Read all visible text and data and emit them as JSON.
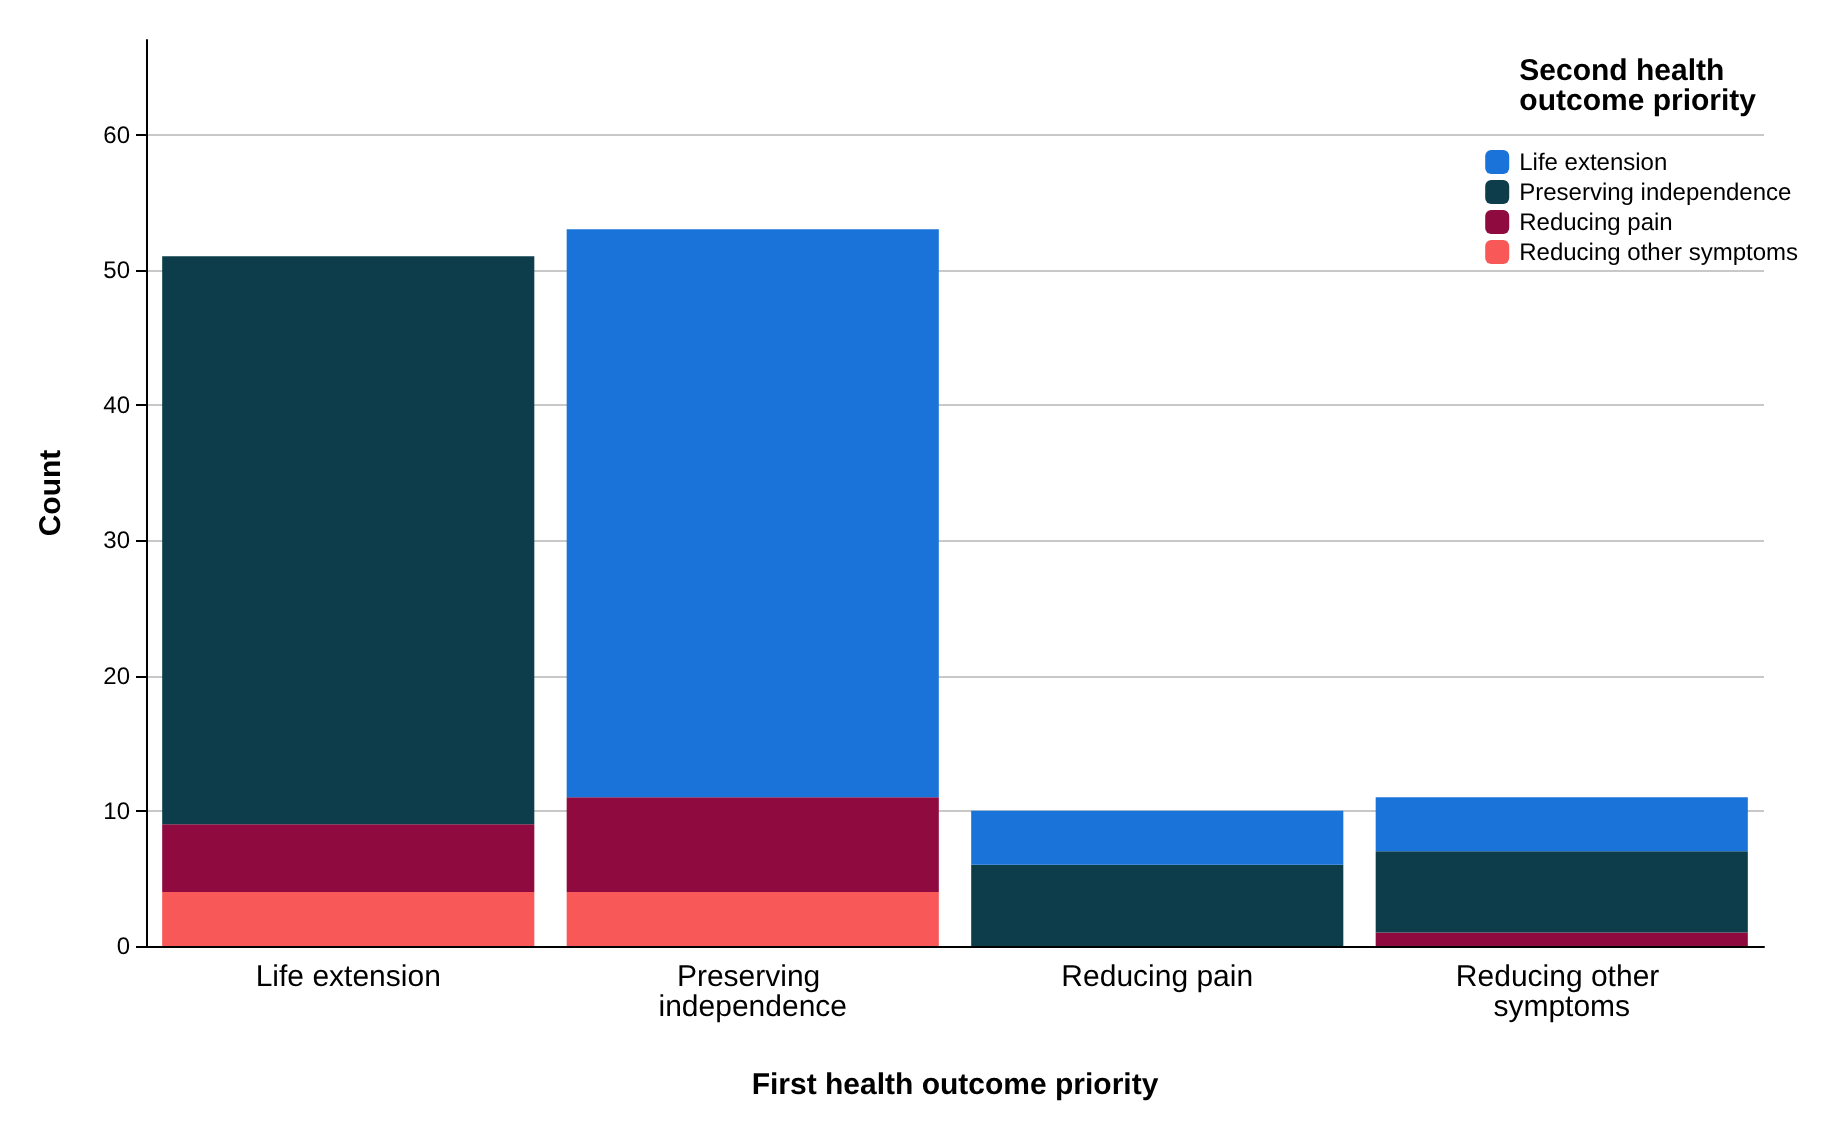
{
  "chart_data": {
    "type": "bar",
    "stacked": true,
    "xlabel": "First health outcome priority",
    "ylabel": "Count",
    "legend_title": "Second health outcome priority",
    "legend": "top right",
    "grid": "y",
    "categories": [
      "Life extension",
      "Preserving independence",
      "Reducing pain",
      "Reducing other symptoms"
    ],
    "ylim": [
      0,
      67
    ],
    "yticks": [
      0,
      10,
      20,
      30,
      40,
      50,
      60
    ],
    "series": [
      {
        "name": "Reducing other symptoms",
        "color": "#f95858",
        "values": [
          4,
          4,
          0,
          0
        ]
      },
      {
        "name": "Reducing pain",
        "color": "#8e0a3f",
        "values": [
          5,
          7,
          0,
          1
        ]
      },
      {
        "name": "Preserving independence",
        "color": "#0d3d4a",
        "values": [
          42,
          0,
          6,
          6
        ]
      },
      {
        "name": "Life extension",
        "color": "#1a73d9",
        "values": [
          0,
          42,
          4,
          4
        ]
      }
    ]
  }
}
